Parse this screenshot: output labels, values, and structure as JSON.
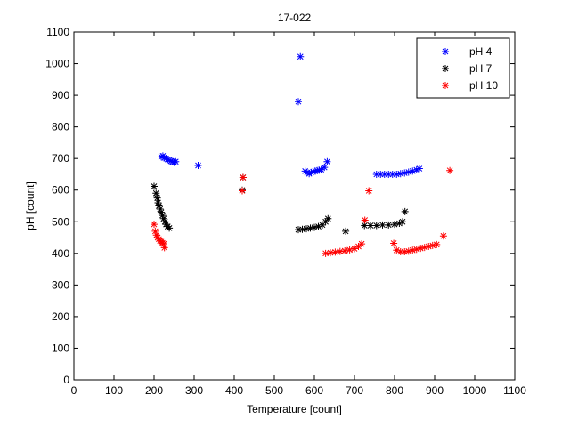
{
  "chart_data": {
    "type": "scatter",
    "title": "17-022",
    "xlabel": "Temperature [count]",
    "ylabel": "pH [count]",
    "xlim": [
      0,
      1100
    ],
    "ylim": [
      0,
      1100
    ],
    "xticks": [
      0,
      100,
      200,
      300,
      400,
      500,
      600,
      700,
      800,
      900,
      1000,
      1100
    ],
    "yticks": [
      0,
      100,
      200,
      300,
      400,
      500,
      600,
      700,
      800,
      900,
      1000,
      1100
    ],
    "grid": false,
    "legend_position": "top-right",
    "marker": "*",
    "series": [
      {
        "name": "pH 4",
        "color": "#0000ff",
        "points": [
          [
            218,
            705
          ],
          [
            222,
            708
          ],
          [
            226,
            702
          ],
          [
            230,
            700
          ],
          [
            234,
            697
          ],
          [
            238,
            694
          ],
          [
            242,
            692
          ],
          [
            246,
            690
          ],
          [
            250,
            688
          ],
          [
            254,
            690
          ],
          [
            310,
            678
          ],
          [
            560,
            880
          ],
          [
            565,
            1022
          ],
          [
            577,
            660
          ],
          [
            582,
            655
          ],
          [
            587,
            652
          ],
          [
            592,
            656
          ],
          [
            597,
            658
          ],
          [
            602,
            660
          ],
          [
            607,
            662
          ],
          [
            612,
            663
          ],
          [
            617,
            665
          ],
          [
            625,
            672
          ],
          [
            632,
            690
          ],
          [
            755,
            650
          ],
          [
            765,
            650
          ],
          [
            775,
            650
          ],
          [
            785,
            650
          ],
          [
            795,
            650
          ],
          [
            805,
            650
          ],
          [
            815,
            652
          ],
          [
            825,
            654
          ],
          [
            835,
            657
          ],
          [
            845,
            660
          ],
          [
            855,
            664
          ],
          [
            862,
            668
          ]
        ]
      },
      {
        "name": "pH 7",
        "color": "#000000",
        "points": [
          [
            200,
            612
          ],
          [
            205,
            590
          ],
          [
            208,
            575
          ],
          [
            210,
            560
          ],
          [
            212,
            550
          ],
          [
            215,
            540
          ],
          [
            218,
            530
          ],
          [
            221,
            520
          ],
          [
            224,
            510
          ],
          [
            227,
            500
          ],
          [
            230,
            492
          ],
          [
            234,
            485
          ],
          [
            238,
            480
          ],
          [
            420,
            600
          ],
          [
            422,
            640
          ],
          [
            560,
            475
          ],
          [
            570,
            476
          ],
          [
            580,
            478
          ],
          [
            590,
            480
          ],
          [
            600,
            482
          ],
          [
            610,
            485
          ],
          [
            620,
            490
          ],
          [
            628,
            500
          ],
          [
            634,
            510
          ],
          [
            678,
            470
          ],
          [
            725,
            488
          ],
          [
            740,
            488
          ],
          [
            755,
            488
          ],
          [
            770,
            490
          ],
          [
            785,
            490
          ],
          [
            800,
            492
          ],
          [
            812,
            495
          ],
          [
            820,
            500
          ],
          [
            826,
            532
          ]
        ]
      },
      {
        "name": "pH 10",
        "color": "#ff0000",
        "points": [
          [
            200,
            492
          ],
          [
            203,
            470
          ],
          [
            206,
            458
          ],
          [
            209,
            450
          ],
          [
            212,
            445
          ],
          [
            215,
            440
          ],
          [
            218,
            437
          ],
          [
            221,
            433
          ],
          [
            224,
            430
          ],
          [
            226,
            418
          ],
          [
            420,
            598
          ],
          [
            422,
            640
          ],
          [
            628,
            400
          ],
          [
            640,
            402
          ],
          [
            652,
            404
          ],
          [
            664,
            406
          ],
          [
            676,
            408
          ],
          [
            688,
            411
          ],
          [
            700,
            415
          ],
          [
            710,
            422
          ],
          [
            718,
            430
          ],
          [
            726,
            505
          ],
          [
            736,
            598
          ],
          [
            798,
            432
          ],
          [
            805,
            410
          ],
          [
            815,
            405
          ],
          [
            825,
            405
          ],
          [
            835,
            407
          ],
          [
            845,
            410
          ],
          [
            855,
            413
          ],
          [
            865,
            416
          ],
          [
            875,
            419
          ],
          [
            885,
            422
          ],
          [
            895,
            425
          ],
          [
            905,
            428
          ],
          [
            922,
            455
          ],
          [
            938,
            662
          ]
        ]
      }
    ]
  }
}
